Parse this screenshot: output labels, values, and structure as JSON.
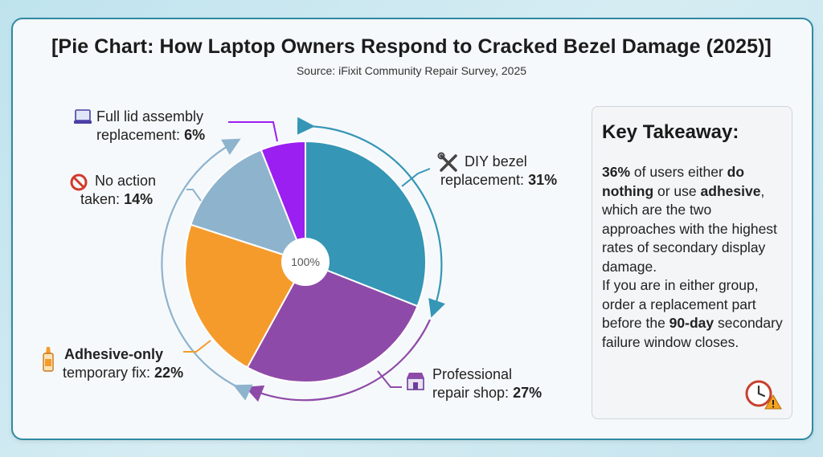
{
  "title": "[Pie Chart: How Laptop Owners Respond to Cracked Bezel Damage (2025)]",
  "subtitle": "Source: iFixit Community Repair Survey, 2025",
  "center_label": "100%",
  "chart_data": {
    "type": "pie",
    "title": "[Pie Chart: How Laptop Owners Respond to Cracked Bezel Damage (2025)]",
    "subtitle": "Source: iFixit Community Repair Survey, 2025",
    "slices": [
      {
        "label_line1": "DIY bezel",
        "label_line2": "replacement:",
        "value_text": "31%",
        "value": 31,
        "color": "#3596b5",
        "icon": "tools-icon"
      },
      {
        "label_line1": "Professional",
        "label_line2": "repair shop:",
        "value_text": "27%",
        "value": 27,
        "color": "#8e4aa8",
        "icon": "shop-icon"
      },
      {
        "label_line1": "Adhesive-only",
        "label_line2": "temporary fix:",
        "value_text": "22%",
        "value": 22,
        "color": "#f59b2c",
        "icon": "glue-icon"
      },
      {
        "label_line1": "No action",
        "label_line2": "taken:",
        "value_text": "14%",
        "value": 14,
        "color": "#8eb3cd",
        "icon": "prohibited-icon"
      },
      {
        "label_line1": "Full lid assembly",
        "label_line2": "replacement:",
        "value_text": "6%",
        "value": 6,
        "color": "#9b1ff0",
        "icon": "laptop-icon"
      }
    ]
  },
  "takeaway": {
    "heading": "Key Takeaway:",
    "p1": {
      "a": "36%",
      "b": " of users either ",
      "c": "do nothing",
      "d": " or use ",
      "e": "adhesive",
      "f": ", which are the two approaches with the highest rates of secondary display damage."
    },
    "p2": {
      "a": "If you are in either group, order a replacement part before the ",
      "b": "90-day",
      "c": " secondary failure window closes."
    }
  }
}
